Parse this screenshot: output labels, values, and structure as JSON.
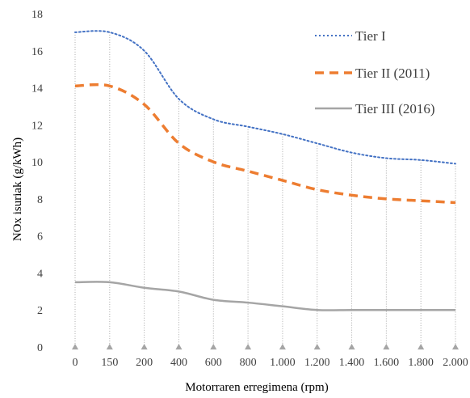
{
  "chart_data": {
    "type": "line",
    "title": "",
    "xlabel": "Motorraren erregimena (rpm)",
    "ylabel": "NOx isuriak (g/kWh)",
    "categories": [
      "0",
      "150",
      "200",
      "400",
      "600",
      "800",
      "1.000",
      "1.200",
      "1.400",
      "1.600",
      "1.800",
      "2.000"
    ],
    "ylim": [
      0,
      18
    ],
    "yticks": [
      0,
      2,
      4,
      6,
      8,
      10,
      12,
      14,
      16,
      18
    ],
    "grid": "vertical dotted drop lines at each category",
    "legend_position": "top-right",
    "series": [
      {
        "name": "Tier I",
        "style": "dotted",
        "color": "#4472C4",
        "values": [
          17.0,
          17.0,
          16.0,
          13.4,
          12.3,
          11.9,
          11.5,
          11.0,
          10.5,
          10.2,
          10.1,
          9.9
        ]
      },
      {
        "name": "Tier II (2011)",
        "style": "dashed",
        "color": "#ED7D31",
        "values": [
          14.1,
          14.1,
          13.1,
          11.0,
          10.0,
          9.5,
          9.0,
          8.5,
          8.2,
          8.0,
          7.9,
          7.8
        ]
      },
      {
        "name": "Tier III (2016)",
        "style": "solid",
        "color": "#A5A5A5",
        "values": [
          3.5,
          3.5,
          3.2,
          3.0,
          2.55,
          2.4,
          2.2,
          2.0,
          2.0,
          2.0,
          2.0,
          2.0
        ]
      }
    ],
    "marker_color": "#A5A5A5"
  }
}
